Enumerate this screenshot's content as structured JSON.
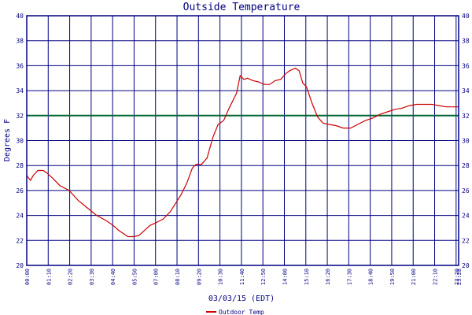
{
  "chart_data": {
    "type": "line",
    "title": "Outside Temperature",
    "xlabel": "03/03/15 (EDT)",
    "ylabel": "Degrees F",
    "ylim": [
      20,
      40
    ],
    "yticks": [
      "40",
      "38",
      "36",
      "34",
      "32",
      "30",
      "28",
      "26",
      "24",
      "22",
      "20"
    ],
    "xticks": [
      "00:00",
      "01:10",
      "02:20",
      "03:30",
      "04:40",
      "05:50",
      "07:00",
      "08:10",
      "09:20",
      "10:30",
      "11:40",
      "12:50",
      "14:00",
      "15:10",
      "16:20",
      "17:30",
      "18:40",
      "19:50",
      "21:00",
      "22:10",
      "23:20",
      "23:28"
    ],
    "x_hours_range": [
      0,
      23.47
    ],
    "reference_line": {
      "value": 32,
      "color": "#006633"
    },
    "grid": true,
    "legend_position": "bottom",
    "colors": {
      "line": "#cc0000",
      "grid": "#000080",
      "frame": "#000080",
      "background": "#ffffff",
      "text": "#000080"
    },
    "series": [
      {
        "name": "Outdoor Temp",
        "x_hours": [
          0,
          0.2,
          0.35,
          0.6,
          0.9,
          1.1,
          1.4,
          1.8,
          2.3,
          2.8,
          3.3,
          3.8,
          4.3,
          4.7,
          5.0,
          5.3,
          5.5,
          5.8,
          6.1,
          6.4,
          6.7,
          7.0,
          7.4,
          7.8,
          8.1,
          8.4,
          8.7,
          9.0,
          9.2,
          9.5,
          9.8,
          10.1,
          10.4,
          10.7,
          11.0,
          11.4,
          11.6,
          11.8,
          12.0,
          12.3,
          12.6,
          12.9,
          13.2,
          13.5,
          13.8,
          14.1,
          14.3,
          14.6,
          14.8,
          15.0,
          15.2,
          15.5,
          15.8,
          16.1,
          16.4,
          16.8,
          17.2,
          17.6,
          18.0,
          18.4,
          18.8,
          19.2,
          19.6,
          20.0,
          20.4,
          20.8,
          21.2,
          21.6,
          22.0,
          22.4,
          22.8,
          23.2,
          23.47
        ],
        "values": [
          27.2,
          26.8,
          27.2,
          27.6,
          27.6,
          27.4,
          27.0,
          26.4,
          26.0,
          25.2,
          24.6,
          24.0,
          23.6,
          23.2,
          22.8,
          22.5,
          22.3,
          22.3,
          22.4,
          22.8,
          23.2,
          23.4,
          23.7,
          24.3,
          25.0,
          25.7,
          26.6,
          27.8,
          28.1,
          28.1,
          28.6,
          30.2,
          31.3,
          31.6,
          32.6,
          33.8,
          35.2,
          34.9,
          35.0,
          34.8,
          34.7,
          34.5,
          34.5,
          34.8,
          34.9,
          35.4,
          35.6,
          35.8,
          35.6,
          34.6,
          34.3,
          33.0,
          31.9,
          31.4,
          31.3,
          31.2,
          31.0,
          31.0,
          31.3,
          31.6,
          31.8,
          32.1,
          32.3,
          32.5,
          32.6,
          32.8,
          32.9,
          32.9,
          32.9,
          32.8,
          32.7,
          32.7,
          32.7
        ]
      }
    ]
  }
}
